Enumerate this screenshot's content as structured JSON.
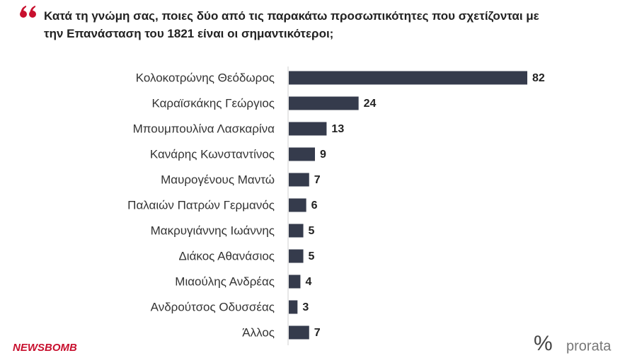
{
  "chart_data": {
    "type": "bar",
    "orientation": "horizontal",
    "title": "Κατά τη γνώμη σας, ποιες δύο από τις παρακάτω προσωπικότητες που σχετίζονται με την Επανάσταση του 1821 είναι οι σημαντικότεροι;",
    "categories": [
      "Κολοκοτρώνης Θεόδωρος",
      "Καραϊσκάκης Γεώργιος",
      "Μπουμπουλίνα Λασκαρίνα",
      "Κανάρης Κωνσταντίνος",
      "Μαυρογένους Μαντώ",
      "Παλαιών Πατρών Γερμανός",
      "Μακρυγιάννης Ιωάννης",
      "Διάκος Αθανάσιος",
      "Μιαούλης Ανδρέας",
      "Ανδρούτσος Οδυσσέας",
      "Άλλος"
    ],
    "values": [
      82,
      24,
      13,
      9,
      7,
      6,
      5,
      5,
      4,
      3,
      7
    ],
    "color": "#353b4c",
    "logos": [
      "NEWSBOMB",
      "%",
      "prorata"
    ]
  }
}
